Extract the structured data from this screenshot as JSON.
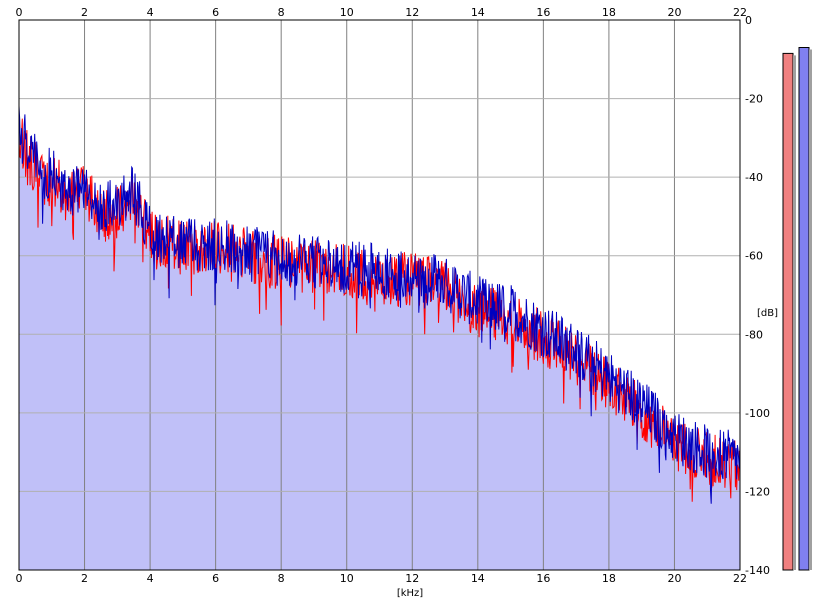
{
  "chart_data": {
    "type": "area",
    "title": "",
    "xlabel": "[kHz]",
    "ylabel": "[dB]",
    "xlim": [
      0,
      22
    ],
    "ylim": [
      -140,
      0
    ],
    "x_ticks": [
      0,
      2,
      4,
      6,
      8,
      10,
      12,
      14,
      16,
      18,
      20,
      22
    ],
    "y_ticks": [
      0,
      -20,
      -40,
      -60,
      -80,
      -100,
      -120,
      -140
    ],
    "y_tick_labels": [
      "0",
      "-20",
      "-40",
      "-60",
      "-80",
      "-100",
      "-120",
      "-140"
    ],
    "x_tick_labels": [
      "0",
      "2",
      "4",
      "6",
      "8",
      "10",
      "12",
      "14",
      "16",
      "18",
      "20",
      "22"
    ],
    "grid": true,
    "series": [
      {
        "color": "#ff0000",
        "x": [
          0,
          0.25,
          0.5,
          0.75,
          1,
          1.5,
          2,
          2.5,
          3,
          3.5,
          4,
          5,
          6,
          7,
          8,
          9,
          10,
          11,
          12,
          13,
          14,
          15,
          16,
          17,
          18,
          19,
          20,
          21,
          22
        ],
        "y": [
          -30,
          -35,
          -38,
          -42,
          -40,
          -45,
          -43,
          -50,
          -49,
          -46,
          -55,
          -58,
          -58,
          -60,
          -62,
          -63,
          -64,
          -66,
          -66,
          -68,
          -74,
          -76,
          -81,
          -86,
          -93,
          -100,
          -108,
          -112,
          -114
        ]
      },
      {
        "color": "#0000c0",
        "x": [
          0,
          0.25,
          0.5,
          0.75,
          1,
          1.5,
          2,
          2.5,
          3,
          3.5,
          4,
          5,
          6,
          7,
          8,
          9,
          10,
          11,
          12,
          13,
          14,
          15,
          16,
          17,
          18,
          19,
          20,
          21,
          22
        ],
        "y": [
          -28,
          -32,
          -36,
          -40,
          -38,
          -44,
          -42,
          -48,
          -47,
          -44,
          -54,
          -57,
          -57,
          -59,
          -61,
          -62,
          -63,
          -64,
          -65,
          -67,
          -72,
          -74,
          -79,
          -84,
          -91,
          -98,
          -106,
          -110,
          -112
        ]
      }
    ],
    "fill_color": "#c0c0f8"
  },
  "level_meters": [
    {
      "color": "#f08080",
      "level_db": -8.5
    },
    {
      "color": "#8080f0",
      "level_db": -7.0
    }
  ]
}
